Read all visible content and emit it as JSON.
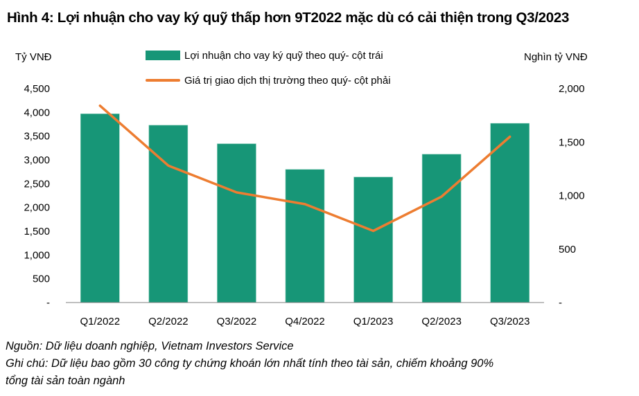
{
  "title": "Hình 4: Lợi nhuận cho vay ký quỹ thấp hơn 9T2022 mặc dù có cải thiện trong Q3/2023",
  "axis_units": {
    "left": "Tỷ VNĐ",
    "right": "Nghìn tỷ VNĐ"
  },
  "legend": {
    "bar_label": "Lợi nhuận cho vay ký quỹ theo quý- cột trái",
    "line_label": "Giá trị giao dịch thị trường theo quý- cột phải"
  },
  "colors": {
    "bar": "#179677",
    "line": "#ED7D31",
    "axis": "#808080"
  },
  "left_ticks": [
    "4,500",
    "4,000",
    "3,500",
    "3,000",
    "2,500",
    "2,000",
    "1,500",
    "1,000",
    "500",
    "-"
  ],
  "right_ticks": [
    "2,000",
    "1,500",
    "1,000",
    "500",
    "-"
  ],
  "footer": {
    "source": "Nguồn: Dữ liệu doanh nghiệp, Vietnam Investors Service",
    "note_line1": "Ghi chú: Dữ liệu bao gồm 30 công ty chứng khoán lớn nhất tính theo tài sản, chiếm khoảng 90%",
    "note_line2": "tổng tài sản toàn ngành"
  },
  "chart_data": {
    "type": "bar",
    "title": "Hình 4: Lợi nhuận cho vay ký quỹ thấp hơn 9T2022 mặc dù có cải thiện trong Q3/2023",
    "categories": [
      "Q1/2022",
      "Q2/2022",
      "Q3/2022",
      "Q4/2022",
      "Q1/2023",
      "Q2/2023",
      "Q3/2023"
    ],
    "series": [
      {
        "name": "Lợi nhuận cho vay ký quỹ theo quý- cột trái",
        "type": "bar",
        "axis": "left",
        "values": [
          3970,
          3730,
          3340,
          2800,
          2640,
          3120,
          3770
        ]
      },
      {
        "name": "Giá trị giao dịch thị trường theo quý- cột phải",
        "type": "line",
        "axis": "right",
        "values": [
          1840,
          1280,
          1030,
          920,
          670,
          990,
          1550
        ]
      }
    ],
    "xlabel": "",
    "ylabel": "Tỷ VNĐ",
    "ylabel_right": "Nghìn tỷ VNĐ",
    "ylim": [
      0,
      4500
    ],
    "ylim_right": [
      0,
      2000
    ],
    "grid": false,
    "legend_position": "top"
  }
}
